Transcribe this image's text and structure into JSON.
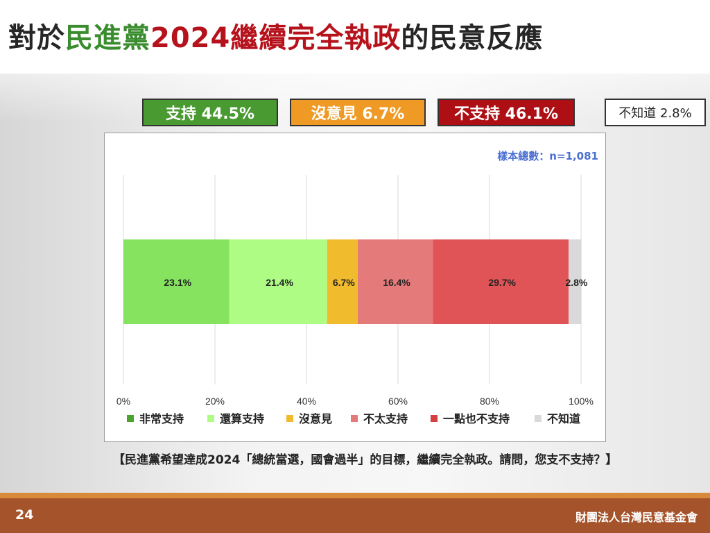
{
  "title": {
    "prefix": "對於",
    "party": "民進黨",
    "subject": "2024繼續完全執政",
    "suffix": "的民意反應"
  },
  "summary": {
    "support": "支持 44.5%",
    "neutral": "沒意見 6.7%",
    "oppose": "不支持 46.1%",
    "unknown": "不知道 2.8%"
  },
  "colors": {
    "very_support": "#86e35f",
    "somewhat_support": "#aefc83",
    "no_opinion": "#f0bb2d",
    "not_really": "#e57a7a",
    "not_at_all": "#e05457",
    "dont_know": "#d9d9d9",
    "legend_very_support": "#4aa32b",
    "legend_somewhat_support": "#aefc83",
    "legend_no_opinion": "#f0bb2d",
    "legend_not_really": "#e57a7a",
    "legend_not_at_all": "#d63d40",
    "legend_dont_know": "#d9d9d9"
  },
  "chart_data": {
    "type": "bar",
    "orientation": "horizontal-stacked-100",
    "sample_size_label": "樣本總數：n=1,081",
    "x_ticks": [
      "0%",
      "20%",
      "40%",
      "60%",
      "80%",
      "100%"
    ],
    "xlim": [
      0,
      100
    ],
    "grid": true,
    "legend_position": "bottom",
    "series": [
      {
        "name": "非常支持",
        "value": 23.1,
        "label": "23.1%"
      },
      {
        "name": "還算支持",
        "value": 21.4,
        "label": "21.4%"
      },
      {
        "name": "沒意見",
        "value": 6.7,
        "label": "6.7%"
      },
      {
        "name": "不太支持",
        "value": 16.4,
        "label": "16.4%"
      },
      {
        "name": "一點也不支持",
        "value": 29.7,
        "label": "29.7%"
      },
      {
        "name": "不知道",
        "value": 2.8,
        "label": "2.8%"
      }
    ]
  },
  "question": "【民進黨希望達成2024「總統當選，國會過半」的目標，繼續完全執政。請問，您支不支持？】",
  "footer": {
    "page": "24",
    "org": "財團法人台灣民意基金會"
  }
}
